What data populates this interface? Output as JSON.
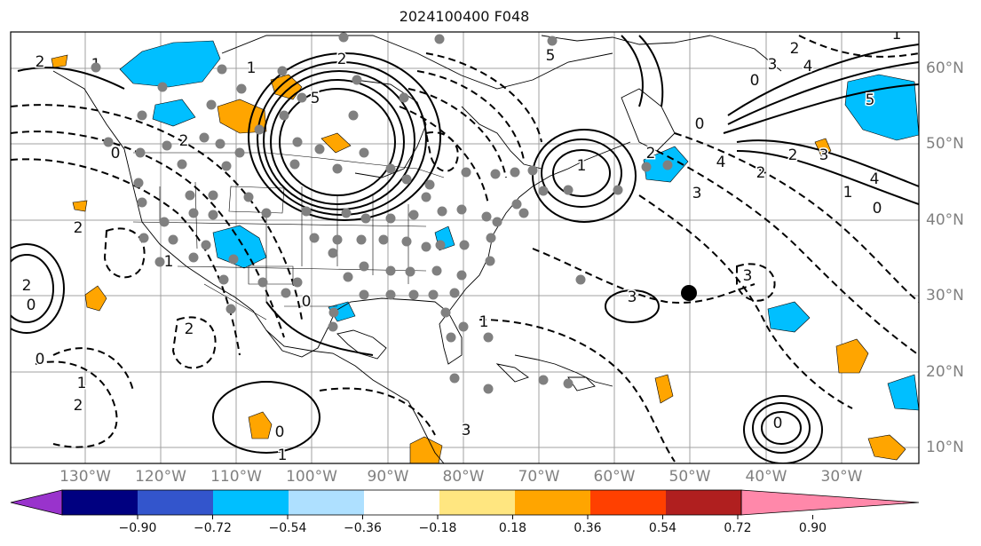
{
  "title": "2024100400 F048",
  "lon_labels": [
    "130°W",
    "120°W",
    "110°W",
    "100°W",
    "90°W",
    "80°W",
    "70°W",
    "60°W",
    "50°W",
    "40°W",
    "30°W"
  ],
  "lat_labels": [
    "60°N",
    "50°N",
    "40°N",
    "30°N",
    "20°N",
    "10°N"
  ],
  "colorbar": {
    "colors": [
      "#9933cc",
      "#000080",
      "#3355cc",
      "#00bfff",
      "#aee0ff",
      "#ffffff",
      "#ffe680",
      "#ffa500",
      "#ff4000",
      "#b01f1f",
      "#ff88aa"
    ],
    "ticks": [
      "−0.90",
      "−0.72",
      "−0.54",
      "−0.36",
      "−0.18",
      "0.18",
      "0.36",
      "0.54",
      "0.72",
      "0.90"
    ]
  },
  "contour_labels": [
    "2",
    "1",
    "0",
    "2",
    "5",
    "1",
    "2",
    "5",
    "3",
    "4",
    "3",
    "2",
    "0",
    "4",
    "5",
    "4",
    "3",
    "2",
    "1",
    "0",
    "2",
    "1",
    "0",
    "3",
    "2",
    "3",
    "1",
    "2",
    "0",
    "0",
    "2",
    "1",
    "2",
    "1",
    "0",
    "1",
    "3",
    "2",
    "1",
    "0",
    "0"
  ],
  "fill_colors": {
    "positive": "#ffa500",
    "negative": "#00bfff"
  },
  "marker_color": "#808080",
  "storm_marker_color": "#000000"
}
